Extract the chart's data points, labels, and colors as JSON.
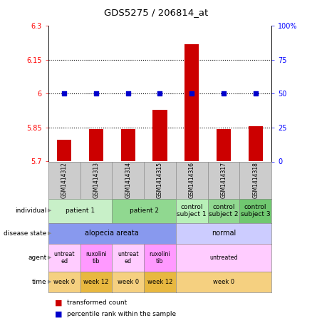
{
  "title": "GDS5275 / 206814_at",
  "samples": [
    "GSM1414312",
    "GSM1414313",
    "GSM1414314",
    "GSM1414315",
    "GSM1414316",
    "GSM1414317",
    "GSM1414318"
  ],
  "bar_values": [
    5.795,
    5.845,
    5.845,
    5.93,
    6.22,
    5.845,
    5.855
  ],
  "dot_values_pct": [
    50,
    50,
    50,
    50,
    50,
    50,
    50
  ],
  "ylim_left": [
    5.7,
    6.3
  ],
  "ylim_right": [
    0,
    100
  ],
  "yticks_left": [
    5.7,
    5.85,
    6.0,
    6.15,
    6.3
  ],
  "ytick_left_labels": [
    "5.7",
    "5.85",
    "6",
    "6.15",
    "6.3"
  ],
  "yticks_right": [
    0,
    25,
    50,
    75,
    100
  ],
  "ytick_right_labels": [
    "0",
    "25",
    "50",
    "75",
    "100%"
  ],
  "hlines": [
    5.85,
    6.0,
    6.15
  ],
  "bar_color": "#cc0000",
  "dot_color": "#0000cc",
  "bar_bottom": 5.7,
  "sample_bg_color": "#cccccc",
  "bg_color": "#ffffff",
  "individual_data": [
    {
      "cols": [
        0,
        1
      ],
      "label": "patient 1",
      "color": "#c8f0c8"
    },
    {
      "cols": [
        2,
        3
      ],
      "label": "patient 2",
      "color": "#90d890"
    },
    {
      "cols": [
        4
      ],
      "label": "control\nsubject 1",
      "color": "#b8f0b8"
    },
    {
      "cols": [
        5
      ],
      "label": "control\nsubject 2",
      "color": "#90d890"
    },
    {
      "cols": [
        6
      ],
      "label": "control\nsubject 3",
      "color": "#70c870"
    }
  ],
  "disease_data": [
    {
      "cols": [
        0,
        1,
        2,
        3
      ],
      "label": "alopecia areata",
      "color": "#8899ee"
    },
    {
      "cols": [
        4,
        5,
        6
      ],
      "label": "normal",
      "color": "#ccccff"
    }
  ],
  "agent_data": [
    {
      "cols": [
        0
      ],
      "label": "untreat\ned",
      "color": "#ffccff"
    },
    {
      "cols": [
        1
      ],
      "label": "ruxolini\ntib",
      "color": "#ff99ff"
    },
    {
      "cols": [
        2
      ],
      "label": "untreat\ned",
      "color": "#ffccff"
    },
    {
      "cols": [
        3
      ],
      "label": "ruxolini\ntib",
      "color": "#ff99ff"
    },
    {
      "cols": [
        4,
        5,
        6
      ],
      "label": "untreated",
      "color": "#ffccff"
    }
  ],
  "time_data": [
    {
      "cols": [
        0
      ],
      "label": "week 0",
      "color": "#f5d080"
    },
    {
      "cols": [
        1
      ],
      "label": "week 12",
      "color": "#e8b840"
    },
    {
      "cols": [
        2
      ],
      "label": "week 0",
      "color": "#f5d080"
    },
    {
      "cols": [
        3
      ],
      "label": "week 12",
      "color": "#e8b840"
    },
    {
      "cols": [
        4,
        5,
        6
      ],
      "label": "week 0",
      "color": "#f5d080"
    }
  ],
  "row_labels": [
    "individual",
    "disease state",
    "agent",
    "time"
  ],
  "legend_red_label": "transformed count",
  "legend_blue_label": "percentile rank within the sample"
}
